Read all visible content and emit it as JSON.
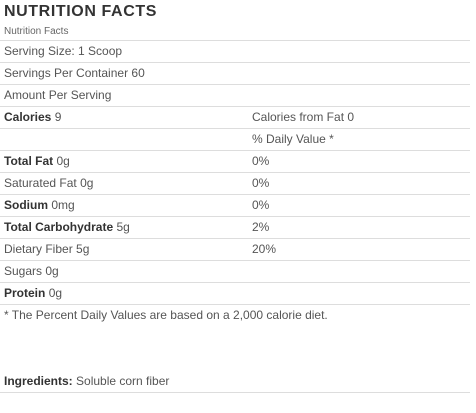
{
  "header": {
    "title": "NUTRITION FACTS",
    "subtitle": "Nutrition Facts"
  },
  "serving": {
    "size": "Serving Size: 1 Scoop",
    "per_container": "Servings Per Container 60",
    "amount_per_serving": "Amount Per Serving"
  },
  "calories": {
    "label": "Calories",
    "value": "9",
    "from_fat": "Calories from Fat 0",
    "daily_value_header": "% Daily Value *"
  },
  "nutrients": [
    {
      "label": "Total Fat",
      "amount": "0g",
      "dv": "0%"
    },
    {
      "label": "Saturated Fat",
      "amount": "0g",
      "dv": "0%"
    },
    {
      "label": "Sodium",
      "amount": "0mg",
      "dv": "0%"
    },
    {
      "label": "Total Carbohydrate",
      "amount": "5g",
      "dv": "2%"
    },
    {
      "label": "Dietary Fiber",
      "amount": "5g",
      "dv": "20%"
    },
    {
      "label": "Sugars",
      "amount": "0g",
      "dv": ""
    },
    {
      "label": "Protein",
      "amount": "0g",
      "dv": ""
    }
  ],
  "footnote": "* The Percent Daily Values are based on a 2,000 calorie diet.",
  "ingredients": {
    "label": "Ingredients:",
    "value": "Soluble corn fiber"
  }
}
